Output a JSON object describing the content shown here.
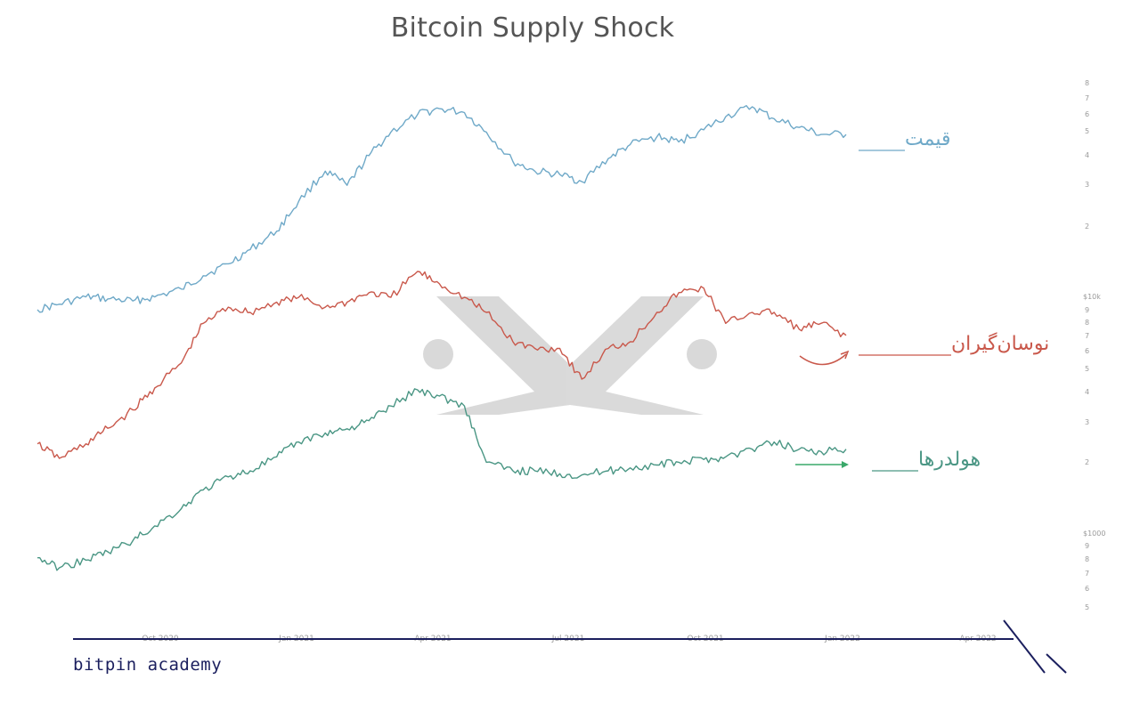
{
  "chart_data": {
    "type": "line",
    "title": "Bitcoin Supply Shock",
    "x_ticks": [
      "Oct 2020",
      "Jan 2021",
      "Apr 2021",
      "Jul 2021",
      "Oct 2021",
      "Jan 2022",
      "Apr 2022"
    ],
    "y_axis": {
      "scale": "log",
      "tick_labels": [
        "8",
        "7",
        "6",
        "5",
        "4",
        "3",
        "2",
        "$10k",
        "9",
        "8",
        "7",
        "6",
        "5",
        "4",
        "3",
        "2",
        "$1000",
        "9",
        "8",
        "7",
        "6",
        "5"
      ]
    },
    "grid": false,
    "series": [
      {
        "name": "قیمت",
        "color": "#6fa9c8",
        "x": [
          "2020-08-01",
          "2020-08-15",
          "2020-09-01",
          "2020-09-15",
          "2020-10-01",
          "2020-10-15",
          "2020-11-01",
          "2020-11-15",
          "2020-12-01",
          "2020-12-15",
          "2021-01-01",
          "2021-01-15",
          "2021-02-01",
          "2021-02-15",
          "2021-03-01",
          "2021-03-15",
          "2021-04-01",
          "2021-04-15",
          "2021-05-01",
          "2021-05-15",
          "2021-06-01",
          "2021-06-15",
          "2021-07-01",
          "2021-07-15",
          "2021-08-01",
          "2021-08-15",
          "2021-09-01",
          "2021-09-15",
          "2021-10-01",
          "2021-10-15",
          "2021-11-01",
          "2021-11-15",
          "2021-12-01",
          "2021-12-15",
          "2021-12-31"
        ],
        "values": [
          1.0,
          1.05,
          1.12,
          1.1,
          1.08,
          1.12,
          1.2,
          1.35,
          1.5,
          1.7,
          2.0,
          2.6,
          3.4,
          3.0,
          3.9,
          4.8,
          5.6,
          5.9,
          5.7,
          4.8,
          3.7,
          3.4,
          3.3,
          3.1,
          3.8,
          4.3,
          4.6,
          4.4,
          4.9,
          5.5,
          6.0,
          5.4,
          5.0,
          4.7,
          4.7
        ]
      },
      {
        "name": "نوسان‌گیران",
        "color": "#c9584b",
        "x": [
          "2020-08-01",
          "2020-08-15",
          "2020-09-01",
          "2020-09-15",
          "2020-10-01",
          "2020-10-15",
          "2020-11-01",
          "2020-11-15",
          "2020-12-01",
          "2020-12-15",
          "2021-01-01",
          "2021-01-15",
          "2021-02-01",
          "2021-02-15",
          "2021-03-01",
          "2021-03-15",
          "2021-04-01",
          "2021-04-15",
          "2021-05-01",
          "2021-05-15",
          "2021-06-01",
          "2021-06-15",
          "2021-07-01",
          "2021-07-15",
          "2021-08-01",
          "2021-08-15",
          "2021-09-01",
          "2021-09-15",
          "2021-10-01",
          "2021-10-15",
          "2021-11-01",
          "2021-11-15",
          "2021-12-01",
          "2021-12-15",
          "2021-12-31"
        ],
        "values": [
          1.0,
          0.9,
          1.0,
          1.12,
          1.28,
          1.5,
          1.8,
          2.4,
          2.7,
          2.6,
          2.8,
          2.9,
          2.7,
          2.8,
          3.0,
          2.9,
          3.5,
          3.2,
          2.9,
          2.6,
          2.1,
          2.0,
          2.0,
          1.6,
          2.0,
          2.1,
          2.6,
          3.0,
          3.1,
          2.4,
          2.6,
          2.6,
          2.3,
          2.4,
          2.2
        ]
      },
      {
        "name": "هولدرها",
        "color": "#4a9684",
        "x": [
          "2020-08-01",
          "2020-08-15",
          "2020-09-01",
          "2020-09-15",
          "2020-10-01",
          "2020-10-15",
          "2020-11-01",
          "2020-11-15",
          "2020-12-01",
          "2020-12-15",
          "2021-01-01",
          "2021-01-15",
          "2021-02-01",
          "2021-02-15",
          "2021-03-01",
          "2021-03-15",
          "2021-04-01",
          "2021-04-15",
          "2021-05-01",
          "2021-05-15",
          "2021-06-01",
          "2021-06-15",
          "2021-07-01",
          "2021-07-15",
          "2021-08-01",
          "2021-08-15",
          "2021-09-01",
          "2021-09-15",
          "2021-10-01",
          "2021-10-15",
          "2021-11-01",
          "2021-11-15",
          "2021-12-01",
          "2021-12-15",
          "2021-12-31"
        ],
        "values": [
          1.0,
          0.92,
          0.98,
          1.05,
          1.15,
          1.3,
          1.5,
          1.75,
          1.95,
          2.05,
          2.3,
          2.6,
          2.8,
          2.9,
          3.1,
          3.5,
          4.0,
          3.8,
          3.5,
          2.2,
          2.05,
          2.05,
          2.0,
          1.98,
          2.05,
          2.1,
          2.15,
          2.2,
          2.25,
          2.3,
          2.45,
          2.6,
          2.45,
          2.4,
          2.45
        ]
      }
    ]
  },
  "footer": {
    "brand": "bitpin academy"
  },
  "colors": {
    "brand_navy": "#1b1f5e",
    "watermark": "#cfcfcf"
  }
}
